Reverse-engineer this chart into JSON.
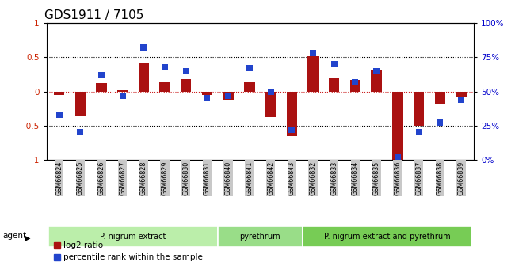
{
  "title": "GDS1911 / 7105",
  "samples": [
    "GSM66824",
    "GSM66825",
    "GSM66826",
    "GSM66827",
    "GSM66828",
    "GSM66829",
    "GSM66830",
    "GSM66831",
    "GSM66840",
    "GSM66841",
    "GSM66842",
    "GSM66843",
    "GSM66832",
    "GSM66833",
    "GSM66834",
    "GSM66835",
    "GSM66836",
    "GSM66837",
    "GSM66838",
    "GSM66839"
  ],
  "log2_ratio": [
    -0.05,
    -0.35,
    0.12,
    0.02,
    0.42,
    0.13,
    0.18,
    -0.05,
    -0.12,
    0.15,
    -0.38,
    -0.65,
    0.52,
    0.2,
    0.17,
    0.32,
    -1.0,
    -0.5,
    -0.18,
    -0.07
  ],
  "percentile": [
    33,
    20,
    62,
    47,
    82,
    68,
    65,
    45,
    47,
    67,
    50,
    22,
    78,
    70,
    57,
    65,
    2,
    20,
    27,
    44
  ],
  "groups": [
    {
      "label": "P. nigrum extract",
      "start": 0,
      "end": 7,
      "color": "#bbeeaa"
    },
    {
      "label": "pyrethrum",
      "start": 8,
      "end": 11,
      "color": "#99dd88"
    },
    {
      "label": "P. nigrum extract and pyrethrum",
      "start": 12,
      "end": 19,
      "color": "#77cc55"
    }
  ],
  "bar_color": "#aa1111",
  "dot_color": "#2244cc",
  "zero_line_color": "#cc2222",
  "ylim_left": [
    -1,
    1
  ],
  "ylim_right": [
    0,
    100
  ],
  "yticks_left": [
    -1,
    -0.5,
    0,
    0.5,
    1
  ],
  "yticks_right": [
    0,
    25,
    50,
    75,
    100
  ],
  "ytick_labels_left": [
    "-1",
    "-0.5",
    "0",
    "0.5",
    "1"
  ],
  "ytick_labels_right": [
    "0%",
    "25%",
    "50%",
    "75%",
    "100%"
  ],
  "legend_items": [
    {
      "label": "log2 ratio",
      "color": "#aa1111"
    },
    {
      "label": "percentile rank within the sample",
      "color": "#2244cc"
    }
  ],
  "agent_label": "agent",
  "bar_width": 0.5,
  "dot_size": 28,
  "title_fontsize": 11,
  "tick_bg_color": "#c8c8c8"
}
